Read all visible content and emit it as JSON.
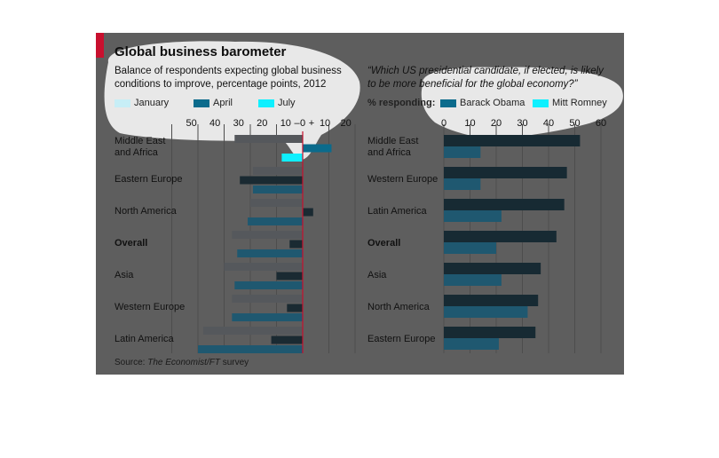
{
  "title": "Global business barometer",
  "source_label": "Source:",
  "source_italic": "The Economist/FT",
  "source_rest": " survey",
  "colors": {
    "panel": "#5e5e5e",
    "highlight": "#ffffff",
    "red": "#c8102e",
    "grid": "#4d4d4d"
  },
  "chart_data": [
    {
      "type": "bar",
      "orientation": "horizontal",
      "subtitle_line1": "Balance of respondents expecting global business",
      "subtitle_line2": "conditions to improve, percentage points, 2012",
      "x_ticks": [
        "50",
        "40",
        "30",
        "20",
        "10",
        "–",
        "0",
        "+",
        "10",
        "20"
      ],
      "xlim": [
        -50,
        20
      ],
      "categories": [
        "Middle East and Africa",
        "Eastern Europe",
        "North America",
        "Overall",
        "Asia",
        "Western Europe",
        "Latin America"
      ],
      "category_lines": [
        [
          "Middle East",
          "and Africa"
        ],
        [
          "Eastern Europe"
        ],
        [
          "North America"
        ],
        [
          "Overall"
        ],
        [
          "Asia"
        ],
        [
          "Western Europe"
        ],
        [
          "Latin America"
        ]
      ],
      "bold_category": "Overall",
      "series": [
        {
          "name": "January",
          "color": "#c7eef6",
          "dim_color": "#55585c",
          "values": [
            -26,
            -19,
            -20,
            -27,
            -30,
            -27,
            -38
          ]
        },
        {
          "name": "April",
          "color": "#0b6b8c",
          "dim_color": "#1a2a32",
          "values": [
            11,
            -24,
            4,
            -5,
            -10,
            -6,
            -12
          ]
        },
        {
          "name": "July",
          "color": "#0ff0ff",
          "dim_color": "#1f5870",
          "values": [
            -8,
            -19,
            -21,
            -25,
            -26,
            -27,
            -40
          ]
        }
      ]
    },
    {
      "type": "bar",
      "orientation": "horizontal",
      "question_line1": "“Which US presidential candidate, if elected, is likely",
      "question_line2": "to be more beneficial for the global economy?”",
      "axis_prefix": "% responding:",
      "x_ticks": [
        "0",
        "10",
        "20",
        "30",
        "40",
        "50",
        "60"
      ],
      "xlim": [
        0,
        60
      ],
      "categories": [
        "Middle East and Africa",
        "Western Europe",
        "Latin America",
        "Overall",
        "Asia",
        "North America",
        "Eastern Europe"
      ],
      "category_lines": [
        [
          "Middle East",
          "and Africa"
        ],
        [
          "Western Europe"
        ],
        [
          "Latin America"
        ],
        [
          "Overall"
        ],
        [
          "Asia"
        ],
        [
          "North America"
        ],
        [
          "Eastern Europe"
        ]
      ],
      "bold_category": "Overall",
      "series": [
        {
          "name": "Barack Obama",
          "color": "#0b6b8c",
          "dim_color": "#172a33",
          "values": [
            52,
            47,
            46,
            43,
            37,
            36,
            35
          ]
        },
        {
          "name": "Mitt Romney",
          "color": "#0ff0ff",
          "dim_color": "#1f5870",
          "values": [
            14,
            14,
            22,
            20,
            22,
            32,
            21
          ]
        }
      ]
    }
  ]
}
